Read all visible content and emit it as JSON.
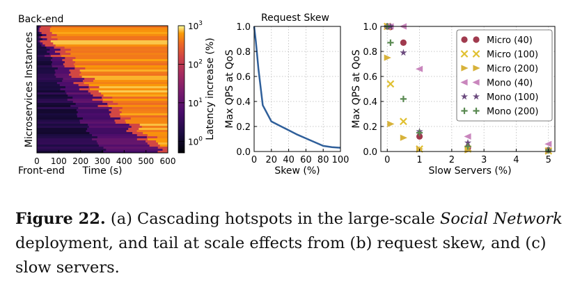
{
  "chart_data": [
    {
      "type": "heatmap",
      "panel": "a",
      "title": "",
      "top_label": "Back-end",
      "bottom_label": "Front-end",
      "xlabel": "Time (s)",
      "ylabel": "Microservices Instances",
      "xlim": [
        0,
        600
      ],
      "xticks": [
        "0",
        "100",
        "200",
        "300",
        "400",
        "500",
        "600"
      ],
      "colorbar": {
        "label": "Latency increase (%)",
        "scale": "log",
        "range": [
          0.5,
          1000
        ],
        "ticks": [
          {
            "base": "10",
            "exp": "3",
            "value": 1000
          },
          {
            "base": "10",
            "exp": "2",
            "value": 100
          },
          {
            "base": "10",
            "exp": "1",
            "value": 10
          },
          {
            "base": "10",
            "exp": "0",
            "value": 1
          }
        ],
        "colormap": "inferno"
      },
      "pattern": "Hotspots begin at the back-end instances early and cascade toward the front-end instances over time; the front-end rows turn hot only after roughly 450-500 s."
    },
    {
      "type": "line",
      "panel": "b",
      "title": "Request Skew",
      "xlabel": "Skew (%)",
      "ylabel": "Max QPS at QoS",
      "xlim": [
        0,
        100
      ],
      "ylim": [
        0,
        1.0
      ],
      "xticks": [
        "0",
        "20",
        "40",
        "60",
        "80",
        "100"
      ],
      "yticks": [
        "0.0",
        "0.2",
        "0.4",
        "0.6",
        "0.8",
        "1.0"
      ],
      "grid": true,
      "color": "#2f5f9a",
      "series": [
        {
          "x": [
            0,
            2,
            5,
            10,
            20,
            30,
            40,
            50,
            60,
            70,
            80,
            90,
            100
          ],
          "values": [
            1.0,
            0.88,
            0.66,
            0.37,
            0.24,
            0.205,
            0.17,
            0.135,
            0.105,
            0.075,
            0.045,
            0.035,
            0.03
          ]
        }
      ]
    },
    {
      "type": "scatter",
      "panel": "c",
      "title": "",
      "xlabel": "Slow Servers (%)",
      "ylabel": "Max QPS at QoS",
      "xlim": [
        -0.2,
        5.2
      ],
      "ylim": [
        0,
        1.0
      ],
      "xticks": [
        "0",
        "1",
        "2",
        "3",
        "4",
        "5"
      ],
      "yticks": [
        "0.0",
        "0.2",
        "0.4",
        "0.6",
        "0.8",
        "1.0"
      ],
      "grid": true,
      "legend": "upper-right",
      "series": [
        {
          "name": "Micro (40)",
          "marker": "circle",
          "color": "#a03a4e",
          "x": [
            0,
            0.1,
            0.5,
            1,
            2.5,
            5
          ],
          "values": [
            1.0,
            0.995,
            0.87,
            0.12,
            0.03,
            0.01
          ]
        },
        {
          "name": "Micro (100)",
          "marker": "x",
          "color": "#e0c030",
          "x": [
            0,
            0.1,
            0.5,
            1,
            2.5,
            5
          ],
          "values": [
            1.0,
            0.54,
            0.24,
            0.02,
            0.02,
            0.005
          ]
        },
        {
          "name": "Micro (200)",
          "marker": "triangle-right",
          "color": "#d7b23a",
          "x": [
            0,
            0.1,
            0.5,
            1,
            2.5,
            5
          ],
          "values": [
            0.75,
            0.22,
            0.11,
            0.02,
            0.01,
            0.0
          ]
        },
        {
          "name": "Mono (40)",
          "marker": "triangle-left",
          "color": "#c986bd",
          "x": [
            0,
            0.1,
            0.5,
            1,
            2.5,
            5
          ],
          "values": [
            1.0,
            1.0,
            1.0,
            0.66,
            0.12,
            0.06
          ]
        },
        {
          "name": "Mono (100)",
          "marker": "star",
          "color": "#6b4a7e",
          "x": [
            0,
            0.1,
            0.5,
            1,
            2.5,
            5
          ],
          "values": [
            1.0,
            1.0,
            0.79,
            0.16,
            0.07,
            0.01
          ]
        },
        {
          "name": "Mono (200)",
          "marker": "plus",
          "color": "#5a8a52",
          "x": [
            0,
            0.1,
            0.5,
            1,
            2.5,
            5
          ],
          "values": [
            1.0,
            0.87,
            0.42,
            0.15,
            0.04,
            0.01
          ]
        }
      ]
    }
  ],
  "caption": {
    "label": "Figure 22.",
    "part1": "(a) Cascading hotspots in the large-scale",
    "italic1": "Social Network",
    "part2": "deployment, and tail at scale effects from (b) request skew, and (c) slow servers."
  }
}
